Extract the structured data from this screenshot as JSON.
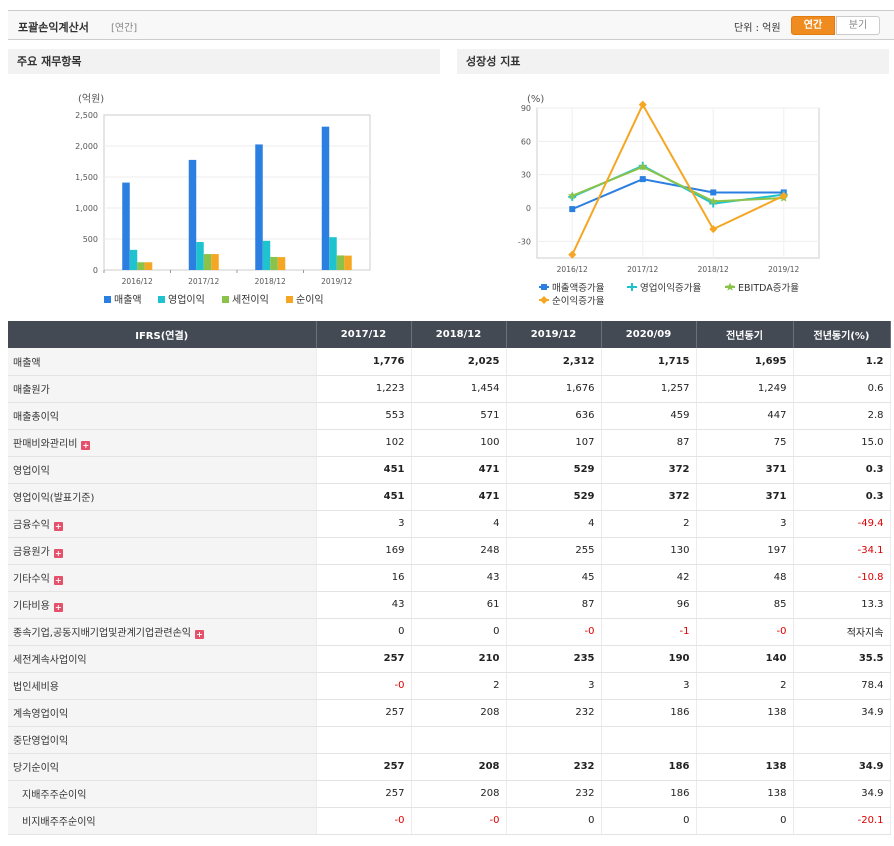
{
  "header": {
    "title": "포괄손익계산서",
    "sub": "[연간]",
    "unit": "단위 : 억원",
    "toggle_annual": "연간",
    "toggle_quarter": "분기"
  },
  "left_panel_title": "주요 재무항목",
  "right_panel_title": "성장성 지표",
  "chart_data": [
    {
      "type": "bar",
      "ylabel": "(억원)",
      "ylim": [
        0,
        2500
      ],
      "yticks": [
        "2,500",
        "2,000",
        "1,500",
        "1,000",
        "500",
        "0"
      ],
      "categories": [
        "2016/12",
        "2017/12",
        "2018/12",
        "2019/12"
      ],
      "series": [
        {
          "name": "매출액",
          "color": "#2b7fe0",
          "values": [
            1410,
            1776,
            2025,
            2312
          ]
        },
        {
          "name": "영업이익",
          "color": "#1fc3d0",
          "values": [
            325,
            451,
            471,
            529
          ]
        },
        {
          "name": "세전이익",
          "color": "#8bc34a",
          "values": [
            125,
            257,
            210,
            235
          ]
        },
        {
          "name": "순이익",
          "color": "#f5a623",
          "values": [
            125,
            257,
            208,
            232
          ]
        }
      ],
      "legend": "bottom"
    },
    {
      "type": "line",
      "ylabel": "(%)",
      "ylim": [
        -45,
        90
      ],
      "yticks": [
        "90",
        "60",
        "30",
        "0",
        "-30"
      ],
      "categories": [
        "2016/12",
        "2017/12",
        "2018/12",
        "2019/12"
      ],
      "series": [
        {
          "name": "매출액증가율",
          "color": "#2b7fe0",
          "marker": "square",
          "values": [
            -1,
            26,
            14,
            14
          ]
        },
        {
          "name": "영업이익증가율",
          "color": "#1fc3d0",
          "marker": "plus",
          "values": [
            10,
            38,
            4,
            12
          ]
        },
        {
          "name": "EBITDA증가율",
          "color": "#8bc34a",
          "marker": "star",
          "values": [
            11,
            37,
            6,
            9
          ]
        },
        {
          "name": "순이익증가율",
          "color": "#f5a623",
          "marker": "diamond",
          "values": [
            -42,
            93,
            -19,
            11
          ]
        }
      ],
      "legend": "bottom"
    }
  ],
  "table": {
    "headers": [
      "IFRS(연결)",
      "2017/12",
      "2018/12",
      "2019/12",
      "2020/09",
      "전년동기",
      "전년동기(%)"
    ],
    "rows": [
      {
        "label": "매출액",
        "values": [
          "1,776",
          "2,025",
          "2,312",
          "1,715",
          "1,695",
          "1.2"
        ],
        "bold": true
      },
      {
        "label": "매출원가",
        "values": [
          "1,223",
          "1,454",
          "1,676",
          "1,257",
          "1,249",
          "0.6"
        ]
      },
      {
        "label": "매출총이익",
        "values": [
          "553",
          "571",
          "636",
          "459",
          "447",
          "2.8"
        ]
      },
      {
        "label": "판매비와관리비",
        "values": [
          "102",
          "100",
          "107",
          "87",
          "75",
          "15.0"
        ],
        "expand": true
      },
      {
        "label": "영업이익",
        "values": [
          "451",
          "471",
          "529",
          "372",
          "371",
          "0.3"
        ],
        "bold": true
      },
      {
        "label": "영업이익(발표기준)",
        "values": [
          "451",
          "471",
          "529",
          "372",
          "371",
          "0.3"
        ],
        "bold": true
      },
      {
        "label": "금융수익",
        "values": [
          "3",
          "4",
          "4",
          "2",
          "3",
          "-49.4"
        ],
        "expand": true
      },
      {
        "label": "금융원가",
        "values": [
          "169",
          "248",
          "255",
          "130",
          "197",
          "-34.1"
        ],
        "expand": true
      },
      {
        "label": "기타수익",
        "values": [
          "16",
          "43",
          "45",
          "42",
          "48",
          "-10.8"
        ],
        "expand": true
      },
      {
        "label": "기타비용",
        "values": [
          "43",
          "61",
          "87",
          "96",
          "85",
          "13.3"
        ],
        "expand": true
      },
      {
        "label": "종속기업,공동지배기업및관계기업관련손익",
        "values": [
          "0",
          "0",
          "-0",
          "-1",
          "-0",
          "적자지속"
        ],
        "expand": true
      },
      {
        "label": "세전계속사업이익",
        "values": [
          "257",
          "210",
          "235",
          "190",
          "140",
          "35.5"
        ],
        "bold": true
      },
      {
        "label": "법인세비용",
        "values": [
          "-0",
          "2",
          "3",
          "3",
          "2",
          "78.4"
        ]
      },
      {
        "label": "계속영업이익",
        "values": [
          "257",
          "208",
          "232",
          "186",
          "138",
          "34.9"
        ]
      },
      {
        "label": "중단영업이익",
        "values": [
          "",
          "",
          "",
          "",
          "",
          ""
        ]
      },
      {
        "label": "당기순이익",
        "values": [
          "257",
          "208",
          "232",
          "186",
          "138",
          "34.9"
        ],
        "bold": true
      },
      {
        "label": "지배주주순이익",
        "values": [
          "257",
          "208",
          "232",
          "186",
          "138",
          "34.9"
        ],
        "indent": true
      },
      {
        "label": "비지배주주순이익",
        "values": [
          "-0",
          "-0",
          "0",
          "0",
          "0",
          "-20.1"
        ],
        "indent": true
      }
    ]
  }
}
